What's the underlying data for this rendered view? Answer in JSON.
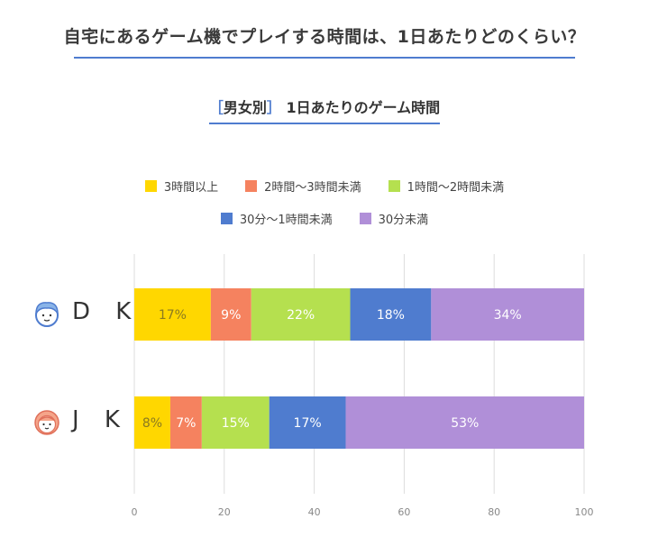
{
  "title": "自宅にあるゲーム機でプレイする時間は、1日あたりどのくらい？",
  "subtitle": {
    "bracket_open": "［",
    "group": "男女別",
    "bracket_close": "］",
    "text": "1日あたりのゲーム時間"
  },
  "chart_data": {
    "type": "bar",
    "orientation": "horizontal",
    "stacked": true,
    "categories": [
      "D K",
      "J K"
    ],
    "series": [
      {
        "name": "3時間以上",
        "color": "#ffd700",
        "values": [
          17,
          8
        ]
      },
      {
        "name": "2時間〜3時間未満",
        "color": "#f5825f",
        "values": [
          9,
          7
        ]
      },
      {
        "name": "1時間〜2時間未満",
        "color": "#b5e04f",
        "values": [
          22,
          15
        ]
      },
      {
        "name": "30分〜1時間未満",
        "color": "#4f7ccf",
        "values": [
          18,
          17
        ]
      },
      {
        "name": "30分未満",
        "color": "#b08fd8",
        "values": [
          34,
          53
        ]
      }
    ],
    "data_labels": [
      [
        "17%",
        "9%",
        "22%",
        "18%",
        "34%"
      ],
      [
        "8%",
        "7%",
        "15%",
        "17%",
        "53%"
      ]
    ],
    "label_colors": [
      [
        "#8a7a20",
        "#ffffff",
        "#ffffff",
        "#ffffff",
        "#ffffff"
      ],
      [
        "#8a7a20",
        "#ffffff",
        "#ffffff",
        "#ffffff",
        "#ffffff"
      ]
    ],
    "xlim": [
      0,
      100
    ],
    "xticks": [
      0,
      20,
      40,
      60,
      80,
      100
    ],
    "grid": true,
    "legend_position": "top"
  },
  "row_icons": [
    "boy-face-icon",
    "girl-face-icon"
  ]
}
